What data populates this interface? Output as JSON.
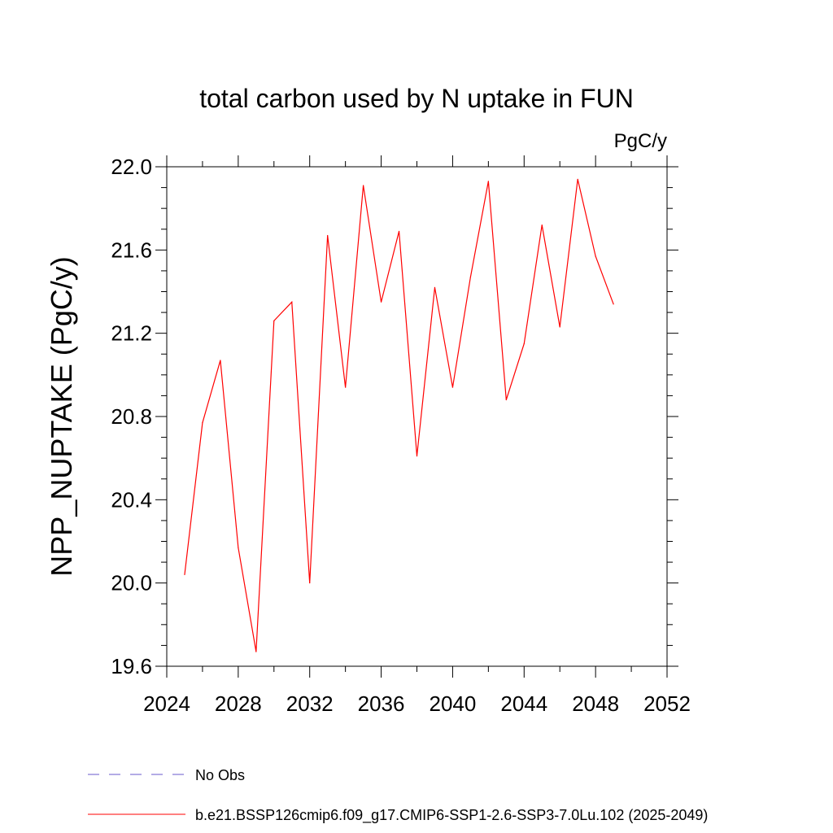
{
  "chart_data": {
    "type": "line",
    "title": "total carbon used by N uptake in FUN",
    "units_label": "PgC/y",
    "ylabel": "NPP_NUPTAKE  (PgC/y)",
    "xlabel": "",
    "xlim": [
      2024,
      2052
    ],
    "ylim": [
      19.6,
      22.0
    ],
    "x_ticks": [
      2024,
      2028,
      2032,
      2036,
      2040,
      2044,
      2048,
      2052
    ],
    "y_ticks": [
      19.6,
      20.0,
      20.4,
      20.8,
      21.2,
      21.6,
      22.0
    ],
    "x_tick_labels": [
      "2024",
      "2028",
      "2032",
      "2036",
      "2040",
      "2044",
      "2048",
      "2052"
    ],
    "y_tick_labels": [
      "19.6",
      "20.0",
      "20.4",
      "20.8",
      "21.2",
      "21.6",
      "22.0"
    ],
    "grid": false,
    "series": [
      {
        "name": "b.e21.BSSP126cmip6.f09_g17.CMIP6-SSP1-2.6-SSP3-7.0Lu.102 (2025-2049)",
        "color": "#ff0000",
        "x": [
          2025,
          2026,
          2027,
          2028,
          2029,
          2030,
          2031,
          2032,
          2033,
          2034,
          2035,
          2036,
          2037,
          2038,
          2039,
          2040,
          2041,
          2042,
          2043,
          2044,
          2045,
          2046,
          2047,
          2048,
          2049
        ],
        "y": [
          20.04,
          20.77,
          21.07,
          20.17,
          19.67,
          21.26,
          21.35,
          20.0,
          21.67,
          20.94,
          21.91,
          21.35,
          21.69,
          20.61,
          21.42,
          20.94,
          21.47,
          21.93,
          20.88,
          21.15,
          21.72,
          21.23,
          21.94,
          21.57,
          21.34
        ]
      }
    ],
    "legend": {
      "placement": "bottom",
      "entries": [
        {
          "label": "No Obs",
          "color": "#6a5acd",
          "style": "dashed"
        },
        {
          "label": "b.e21.BSSP126cmip6.f09_g17.CMIP6-SSP1-2.6-SSP3-7.0Lu.102 (2025-2049)",
          "color": "#ff0000",
          "style": "solid"
        }
      ]
    }
  }
}
